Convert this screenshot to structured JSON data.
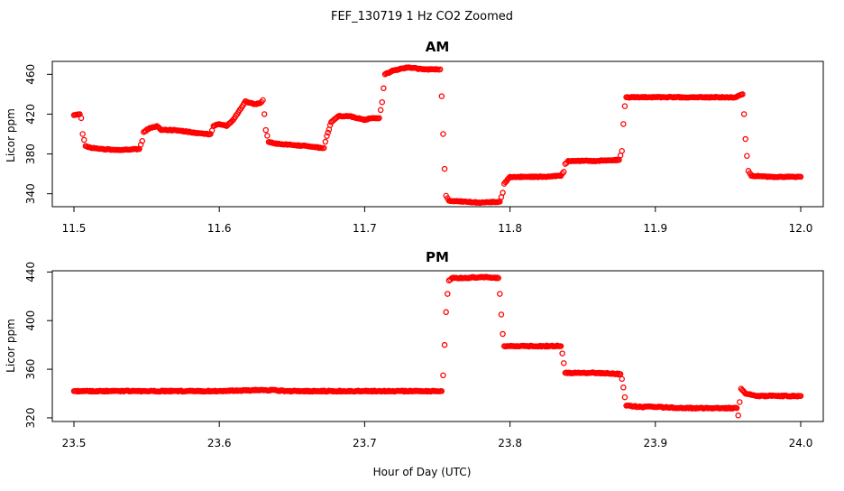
{
  "figure": {
    "title": "FEF_130719  1 Hz CO2 Zoomed",
    "xlabel": "Hour of Day (UTC)"
  },
  "colors": {
    "points": "#ff0000",
    "axis": "#000000"
  },
  "chart_data": [
    {
      "type": "scatter",
      "title": "AM",
      "xlabel": "Hour of Day (UTC)",
      "ylabel": "Licor ppm",
      "xlim": [
        11.5,
        12.0
      ],
      "ylim": [
        327,
        473
      ],
      "x_ticks": [
        "11.5",
        "11.6",
        "11.7",
        "11.8",
        "11.9",
        "12.0"
      ],
      "y_ticks": [
        "340",
        "380",
        "420",
        "460"
      ],
      "series": [
        {
          "values": [
            [
              11.5,
              419
            ],
            [
              11.504,
              420
            ],
            [
              11.505,
              416
            ],
            [
              11.506,
              400
            ],
            [
              11.508,
              388
            ],
            [
              11.512,
              386
            ],
            [
              11.52,
              385
            ],
            [
              11.53,
              384
            ],
            [
              11.545,
              385
            ],
            [
              11.547,
              393
            ],
            [
              11.548,
              402
            ],
            [
              11.552,
              406
            ],
            [
              11.557,
              408
            ],
            [
              11.56,
              404
            ],
            [
              11.57,
              404
            ],
            [
              11.58,
              402
            ],
            [
              11.59,
              400
            ],
            [
              11.594,
              400
            ],
            [
              11.596,
              408
            ],
            [
              11.6,
              410
            ],
            [
              11.605,
              408
            ],
            [
              11.61,
              415
            ],
            [
              11.614,
              424
            ],
            [
              11.618,
              433
            ],
            [
              11.624,
              430
            ],
            [
              11.628,
              431
            ],
            [
              11.63,
              434
            ],
            [
              11.631,
              420
            ],
            [
              11.632,
              404
            ],
            [
              11.634,
              392
            ],
            [
              11.64,
              390
            ],
            [
              11.65,
              389
            ],
            [
              11.66,
              388
            ],
            [
              11.67,
              386
            ],
            [
              11.672,
              386
            ],
            [
              11.674,
              398
            ],
            [
              11.677,
              412
            ],
            [
              11.682,
              418
            ],
            [
              11.69,
              418
            ],
            [
              11.7,
              414
            ],
            [
              11.705,
              416
            ],
            [
              11.71,
              416
            ],
            [
              11.712,
              432
            ],
            [
              11.713,
              446
            ],
            [
              11.714,
              460
            ],
            [
              11.72,
              464
            ],
            [
              11.73,
              467
            ],
            [
              11.74,
              465
            ],
            [
              11.75,
              465
            ],
            [
              11.752,
              465
            ],
            [
              11.753,
              438
            ],
            [
              11.754,
              400
            ],
            [
              11.755,
              365
            ],
            [
              11.756,
              338
            ],
            [
              11.758,
              333
            ],
            [
              11.77,
              332
            ],
            [
              11.78,
              331
            ],
            [
              11.793,
              332
            ],
            [
              11.795,
              341
            ],
            [
              11.796,
              350
            ],
            [
              11.8,
              357
            ],
            [
              11.81,
              357
            ],
            [
              11.82,
              357
            ],
            [
              11.835,
              358
            ],
            [
              11.837,
              362
            ],
            [
              11.838,
              370
            ],
            [
              11.84,
              373
            ],
            [
              11.85,
              373
            ],
            [
              11.86,
              373
            ],
            [
              11.875,
              374
            ],
            [
              11.877,
              383
            ],
            [
              11.878,
              410
            ],
            [
              11.879,
              428
            ],
            [
              11.88,
              437
            ],
            [
              11.89,
              437
            ],
            [
              11.9,
              437
            ],
            [
              11.92,
              437
            ],
            [
              11.94,
              437
            ],
            [
              11.955,
              437
            ],
            [
              11.96,
              440
            ],
            [
              11.961,
              420
            ],
            [
              11.962,
              395
            ],
            [
              11.963,
              378
            ],
            [
              11.964,
              363
            ],
            [
              11.966,
              358
            ],
            [
              11.98,
              357
            ],
            [
              11.99,
              357
            ],
            [
              12.0,
              357
            ]
          ]
        }
      ]
    },
    {
      "type": "scatter",
      "title": "PM",
      "xlabel": "Hour of Day (UTC)",
      "ylabel": "Licor ppm",
      "xlim": [
        23.5,
        24.0
      ],
      "ylim": [
        317,
        441
      ],
      "x_ticks": [
        "23.5",
        "23.6",
        "23.7",
        "23.8",
        "23.9",
        "24.0"
      ],
      "y_ticks": [
        "320",
        "360",
        "400",
        "440"
      ],
      "series": [
        {
          "values": [
            [
              23.5,
              342
            ],
            [
              23.55,
              342
            ],
            [
              23.6,
              342
            ],
            [
              23.63,
              343
            ],
            [
              23.65,
              342
            ],
            [
              23.7,
              342
            ],
            [
              23.74,
              342
            ],
            [
              23.753,
              342
            ],
            [
              23.754,
              355
            ],
            [
              23.755,
              380
            ],
            [
              23.756,
              407
            ],
            [
              23.757,
              422
            ],
            [
              23.758,
              433
            ],
            [
              23.76,
              435
            ],
            [
              23.77,
              435
            ],
            [
              23.78,
              436
            ],
            [
              23.792,
              435
            ],
            [
              23.793,
              422
            ],
            [
              23.794,
              405
            ],
            [
              23.795,
              389
            ],
            [
              23.796,
              379
            ],
            [
              23.8,
              379
            ],
            [
              23.81,
              379
            ],
            [
              23.82,
              379
            ],
            [
              23.835,
              379
            ],
            [
              23.836,
              373
            ],
            [
              23.837,
              365
            ],
            [
              23.838,
              357
            ],
            [
              23.85,
              357
            ],
            [
              23.86,
              357
            ],
            [
              23.876,
              356
            ],
            [
              23.877,
              352
            ],
            [
              23.878,
              345
            ],
            [
              23.879,
              337
            ],
            [
              23.88,
              330
            ],
            [
              23.89,
              329
            ],
            [
              23.9,
              329
            ],
            [
              23.92,
              328
            ],
            [
              23.94,
              328
            ],
            [
              23.956,
              328
            ],
            [
              23.957,
              322
            ],
            [
              23.958,
              333
            ],
            [
              23.959,
              344
            ],
            [
              23.962,
              340
            ],
            [
              23.97,
              338
            ],
            [
              23.98,
              338
            ],
            [
              24.0,
              338
            ]
          ]
        }
      ]
    }
  ]
}
